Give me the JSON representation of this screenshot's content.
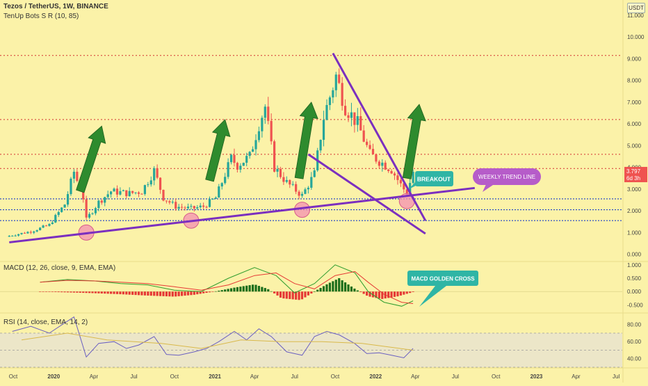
{
  "header": {
    "symbol_line": "Tezos / TetherUS, 1W, BINANCE",
    "indicator_line": "TenUp Bots S R (10, 85)",
    "macd_label": "MACD (12, 26, close, 9, EMA, EMA)",
    "rsi_label": "RSI (14, close, EMA, 14, 2)",
    "currency": "USDT"
  },
  "price_badge": {
    "price": "3.797",
    "countdown": "6d 3h",
    "color": "#ef5350"
  },
  "colors": {
    "up": "#26a69a",
    "down": "#ef5350",
    "trend": "#7b2fbf",
    "arrow": "#2e8b2e",
    "resistance": "#d32f2f",
    "support": "#1a3cc9",
    "macd_pos": "#1b6e1b",
    "macd_neg": "#e53935"
  },
  "annotations": {
    "breakout": "BREAKOUT",
    "weekly_trend": "WEEKLY TREND LINE",
    "macd_cross": "MACD GOLDEN CROSS"
  },
  "chart_data": [
    {
      "type": "candlestick",
      "title": "Tezos / TetherUS, 1W, BINANCE",
      "x_tick_labels": [
        "Oct",
        "2020",
        "Apr",
        "Jul",
        "Oct",
        "2021",
        "Apr",
        "Jul",
        "Oct",
        "2022",
        "Apr",
        "Jul",
        "Oct",
        "2023",
        "Apr",
        "Jul"
      ],
      "x_range": [
        "2019-09-01",
        "2023-07-15"
      ],
      "y_tick_labels": [
        "0.000",
        "1.000",
        "2.000",
        "3.000",
        "4.000",
        "5.000",
        "6.000",
        "7.000",
        "8.000",
        "9.000",
        "10.000",
        "11.000"
      ],
      "ylim": [
        -0.3,
        11.7
      ],
      "last_price": 3.797,
      "resistance_levels": [
        9.15,
        6.2,
        4.6,
        3.95
      ],
      "support_levels": [
        2.55,
        2.05,
        1.55
      ],
      "anchors": [
        {
          "date": "2019-09-22",
          "close": 0.85
        },
        {
          "date": "2019-11-10",
          "close": 1.05
        },
        {
          "date": "2019-12-22",
          "close": 1.35
        },
        {
          "date": "2020-01-26",
          "close": 2.3
        },
        {
          "date": "2020-02-16",
          "close": 3.8
        },
        {
          "date": "2020-03-08",
          "close": 2.6
        },
        {
          "date": "2020-03-15",
          "close": 1.6
        },
        {
          "date": "2020-04-12",
          "close": 2.4
        },
        {
          "date": "2020-05-10",
          "close": 2.9
        },
        {
          "date": "2020-06-21",
          "close": 2.8
        },
        {
          "date": "2020-07-19",
          "close": 2.9
        },
        {
          "date": "2020-08-16",
          "close": 3.85
        },
        {
          "date": "2020-09-06",
          "close": 2.6
        },
        {
          "date": "2020-10-04",
          "close": 2.2
        },
        {
          "date": "2020-11-08",
          "close": 2.1
        },
        {
          "date": "2020-12-06",
          "close": 2.2
        },
        {
          "date": "2021-01-03",
          "close": 2.6
        },
        {
          "date": "2021-02-07",
          "close": 4.4
        },
        {
          "date": "2021-02-21",
          "close": 4.1
        },
        {
          "date": "2021-03-21",
          "close": 4.5
        },
        {
          "date": "2021-04-11",
          "close": 6.0
        },
        {
          "date": "2021-04-25",
          "close": 6.8
        },
        {
          "date": "2021-05-16",
          "close": 4.0
        },
        {
          "date": "2021-06-13",
          "close": 3.3
        },
        {
          "date": "2021-07-18",
          "close": 2.7
        },
        {
          "date": "2021-08-15",
          "close": 3.7
        },
        {
          "date": "2021-09-05",
          "close": 6.3
        },
        {
          "date": "2021-10-03",
          "close": 8.2
        },
        {
          "date": "2021-10-24",
          "close": 6.8
        },
        {
          "date": "2021-11-21",
          "close": 6.0
        },
        {
          "date": "2021-12-19",
          "close": 4.6
        },
        {
          "date": "2022-01-16",
          "close": 4.2
        },
        {
          "date": "2022-02-06",
          "close": 3.9
        },
        {
          "date": "2022-02-27",
          "close": 3.2
        },
        {
          "date": "2022-03-13",
          "close": 2.8
        },
        {
          "date": "2022-03-27",
          "close": 3.797
        }
      ],
      "trend_lines": [
        {
          "name": "weekly_trend",
          "from": [
            "2019-09-22",
            0.55
          ],
          "to": [
            "2022-08-14",
            3.05
          ]
        },
        {
          "name": "wedge_upper",
          "from": [
            "2021-09-26",
            9.25
          ],
          "to": [
            "2022-04-24",
            1.55
          ]
        },
        {
          "name": "wedge_lower",
          "from": [
            "2021-08-01",
            4.6
          ],
          "to": [
            "2022-04-24",
            0.95
          ]
        }
      ],
      "support_touches": [
        {
          "date": "2020-03-15",
          "value": 1.0
        },
        {
          "date": "2020-11-08",
          "value": 1.55
        },
        {
          "date": "2021-07-18",
          "value": 2.05
        },
        {
          "date": "2022-03-13",
          "value": 2.45
        }
      ],
      "up_arrows": [
        {
          "from": [
            "2020-03-01",
            2.9
          ],
          "to": [
            "2020-04-19",
            5.9
          ]
        },
        {
          "from": [
            "2020-12-20",
            3.4
          ],
          "to": [
            "2021-01-24",
            6.2
          ]
        },
        {
          "from": [
            "2021-07-11",
            3.5
          ],
          "to": [
            "2021-08-08",
            7.0
          ]
        },
        {
          "from": [
            "2022-03-13",
            3.5
          ],
          "to": [
            "2022-04-10",
            6.9
          ]
        }
      ]
    },
    {
      "type": "bar",
      "title": "MACD (12, 26, close, 9, EMA, EMA)",
      "y_tick_labels": [
        "-0.500",
        "0.000",
        "0.500",
        "1.000"
      ],
      "ylim": [
        -0.75,
        1.1
      ],
      "histogram": [
        {
          "date": "2019-12-01",
          "value": -0.005
        },
        {
          "date": "2020-02-01",
          "value": -0.03
        },
        {
          "date": "2020-04-01",
          "value": -0.06
        },
        {
          "date": "2020-06-01",
          "value": -0.1
        },
        {
          "date": "2020-08-01",
          "value": -0.15
        },
        {
          "date": "2020-10-01",
          "value": -0.19
        },
        {
          "date": "2020-11-15",
          "value": -0.12
        },
        {
          "date": "2020-12-31",
          "value": 0.0
        },
        {
          "date": "2021-02-15",
          "value": 0.15
        },
        {
          "date": "2021-04-01",
          "value": 0.27
        },
        {
          "date": "2021-05-01",
          "value": 0.1
        },
        {
          "date": "2021-06-01",
          "value": -0.25
        },
        {
          "date": "2021-07-15",
          "value": -0.32
        },
        {
          "date": "2021-08-15",
          "value": 0.0
        },
        {
          "date": "2021-09-15",
          "value": 0.3
        },
        {
          "date": "2021-10-10",
          "value": 0.5
        },
        {
          "date": "2021-11-15",
          "value": 0.1
        },
        {
          "date": "2021-12-15",
          "value": -0.18
        },
        {
          "date": "2022-01-15",
          "value": -0.28
        },
        {
          "date": "2022-02-20",
          "value": -0.18
        },
        {
          "date": "2022-03-27",
          "value": -0.02
        }
      ],
      "series": [
        {
          "color": "#2e9d2e",
          "points": [
            {
              "date": "2019-12-01",
              "value": 0.35
            },
            {
              "date": "2020-02-01",
              "value": 0.45
            },
            {
              "date": "2020-04-01",
              "value": 0.4
            },
            {
              "date": "2020-06-01",
              "value": 0.3
            },
            {
              "date": "2020-08-01",
              "value": 0.25
            },
            {
              "date": "2020-10-01",
              "value": 0.05
            },
            {
              "date": "2020-12-01",
              "value": 0.0
            },
            {
              "date": "2021-02-01",
              "value": 0.5
            },
            {
              "date": "2021-04-01",
              "value": 0.9
            },
            {
              "date": "2021-05-20",
              "value": 0.6
            },
            {
              "date": "2021-07-01",
              "value": -0.05
            },
            {
              "date": "2021-08-15",
              "value": 0.3
            },
            {
              "date": "2021-10-01",
              "value": 1.0
            },
            {
              "date": "2021-11-15",
              "value": 0.7
            },
            {
              "date": "2021-12-15",
              "value": 0.0
            },
            {
              "date": "2022-01-20",
              "value": -0.4
            },
            {
              "date": "2022-03-01",
              "value": -0.55
            },
            {
              "date": "2022-03-27",
              "value": -0.35
            }
          ]
        },
        {
          "color": "#e53935",
          "points": [
            {
              "date": "2019-12-01",
              "value": 0.35
            },
            {
              "date": "2020-02-01",
              "value": 0.42
            },
            {
              "date": "2020-04-01",
              "value": 0.4
            },
            {
              "date": "2020-06-01",
              "value": 0.35
            },
            {
              "date": "2020-08-01",
              "value": 0.3
            },
            {
              "date": "2020-10-01",
              "value": 0.18
            },
            {
              "date": "2020-12-01",
              "value": 0.05
            },
            {
              "date": "2021-02-01",
              "value": 0.25
            },
            {
              "date": "2021-04-01",
              "value": 0.6
            },
            {
              "date": "2021-05-20",
              "value": 0.7
            },
            {
              "date": "2021-07-01",
              "value": 0.3
            },
            {
              "date": "2021-08-15",
              "value": 0.1
            },
            {
              "date": "2021-10-01",
              "value": 0.6
            },
            {
              "date": "2021-11-15",
              "value": 0.75
            },
            {
              "date": "2021-12-15",
              "value": 0.35
            },
            {
              "date": "2022-01-20",
              "value": -0.1
            },
            {
              "date": "2022-03-01",
              "value": -0.4
            },
            {
              "date": "2022-03-27",
              "value": -0.45
            }
          ]
        }
      ]
    },
    {
      "type": "line",
      "title": "RSI (14, close, EMA, 14, 2)",
      "y_tick_labels": [
        "40.00",
        "60.00",
        "80.00"
      ],
      "ylim": [
        30,
        92
      ],
      "band": [
        30,
        70
      ],
      "series": [
        {
          "color": "#6a5fc1",
          "points": [
            {
              "date": "2019-09-29",
              "value": 72
            },
            {
              "date": "2019-11-10",
              "value": 78
            },
            {
              "date": "2019-12-22",
              "value": 70
            },
            {
              "date": "2020-01-26",
              "value": 82
            },
            {
              "date": "2020-02-16",
              "value": 89
            },
            {
              "date": "2020-03-15",
              "value": 42
            },
            {
              "date": "2020-04-12",
              "value": 58
            },
            {
              "date": "2020-05-17",
              "value": 60
            },
            {
              "date": "2020-06-14",
              "value": 52
            },
            {
              "date": "2020-07-12",
              "value": 56
            },
            {
              "date": "2020-08-16",
              "value": 66
            },
            {
              "date": "2020-09-13",
              "value": 45
            },
            {
              "date": "2020-10-11",
              "value": 44
            },
            {
              "date": "2020-11-15",
              "value": 48
            },
            {
              "date": "2020-12-13",
              "value": 52
            },
            {
              "date": "2021-01-10",
              "value": 60
            },
            {
              "date": "2021-02-14",
              "value": 72
            },
            {
              "date": "2021-03-14",
              "value": 62
            },
            {
              "date": "2021-04-11",
              "value": 75
            },
            {
              "date": "2021-05-09",
              "value": 66
            },
            {
              "date": "2021-06-13",
              "value": 48
            },
            {
              "date": "2021-07-18",
              "value": 44
            },
            {
              "date": "2021-08-15",
              "value": 66
            },
            {
              "date": "2021-09-12",
              "value": 72
            },
            {
              "date": "2021-10-10",
              "value": 68
            },
            {
              "date": "2021-11-14",
              "value": 58
            },
            {
              "date": "2021-12-12",
              "value": 46
            },
            {
              "date": "2022-01-09",
              "value": 47
            },
            {
              "date": "2022-02-06",
              "value": 44
            },
            {
              "date": "2022-03-06",
              "value": 41
            },
            {
              "date": "2022-03-27",
              "value": 52
            }
          ]
        },
        {
          "color": "#d9b94a",
          "points": [
            {
              "date": "2019-10-20",
              "value": 62
            },
            {
              "date": "2020-02-01",
              "value": 70
            },
            {
              "date": "2020-05-01",
              "value": 62
            },
            {
              "date": "2020-09-01",
              "value": 58
            },
            {
              "date": "2020-12-01",
              "value": 52
            },
            {
              "date": "2021-03-01",
              "value": 62
            },
            {
              "date": "2021-06-01",
              "value": 60
            },
            {
              "date": "2021-09-01",
              "value": 60
            },
            {
              "date": "2021-12-01",
              "value": 58
            },
            {
              "date": "2022-03-27",
              "value": 50
            }
          ]
        }
      ]
    }
  ]
}
